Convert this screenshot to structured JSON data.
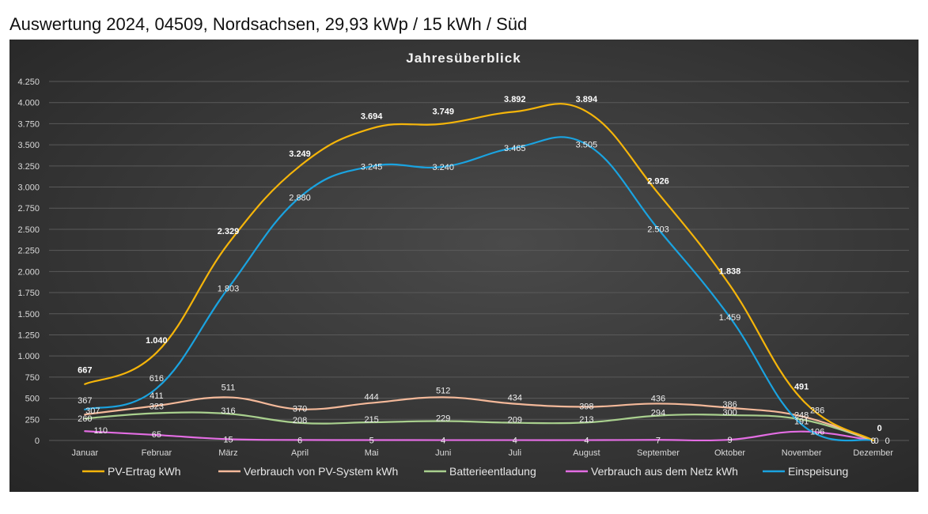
{
  "page": {
    "title": "Auswertung 2024, 04509, Nordsachsen, 29,93 kWp / 15 kWh / Süd"
  },
  "chart_data": {
    "type": "line",
    "title": "Jahresüberblick",
    "categories": [
      "Januar",
      "Februar",
      "März",
      "April",
      "Mai",
      "Juni",
      "Juli",
      "August",
      "September",
      "Oktober",
      "November",
      "Dezember"
    ],
    "ylim": [
      0,
      4250
    ],
    "yticks": [
      0,
      250,
      500,
      750,
      1000,
      1250,
      1500,
      1750,
      2000,
      2250,
      2500,
      2750,
      3000,
      3250,
      3500,
      3750,
      4000,
      4250
    ],
    "ytick_labels": [
      "0",
      "250",
      "500",
      "750",
      "1.000",
      "1.250",
      "1.500",
      "1.750",
      "2.000",
      "2.250",
      "2.500",
      "2.750",
      "3.000",
      "3.250",
      "3.500",
      "3.750",
      "4.000",
      "4.250"
    ],
    "grid": true,
    "legend_position": "bottom",
    "series": [
      {
        "name": "PV-Ertrag     kWh",
        "color": "#f5b50a",
        "bold": true,
        "values": [
          667,
          1040,
          2329,
          3249,
          3694,
          3749,
          3892,
          3894,
          2926,
          1838,
          491,
          0
        ],
        "labels": [
          "667",
          "1.040",
          "2.329",
          "3.249",
          "3.694",
          "3.749",
          "3.892",
          "3.894",
          "2.926",
          "1.838",
          "491",
          "0"
        ]
      },
      {
        "name": "Verbrauch von PV-System kWh",
        "color": "#f4b99a",
        "bold": false,
        "values": [
          307,
          411,
          511,
          370,
          444,
          512,
          434,
          398,
          436,
          386,
          286,
          0
        ],
        "labels": [
          "307",
          "411",
          "511",
          "370",
          "444",
          "512",
          "434",
          "398",
          "436",
          "386",
          "286",
          "0"
        ]
      },
      {
        "name": "Batterieentladung",
        "color": "#a9d08e",
        "bold": false,
        "values": [
          260,
          323,
          316,
          208,
          215,
          229,
          209,
          213,
          294,
          300,
          248,
          0
        ],
        "labels": [
          "260",
          "323",
          "316",
          "208",
          "215",
          "229",
          "209",
          "213",
          "294",
          "300",
          "248",
          "0"
        ]
      },
      {
        "name": "Verbrauch aus dem Netz kWh",
        "color": "#e36de3",
        "bold": false,
        "values": [
          110,
          65,
          15,
          6,
          5,
          4,
          4,
          4,
          7,
          9,
          106,
          0
        ],
        "labels": [
          "110",
          "65",
          "15",
          "6",
          "5",
          "4",
          "4",
          "4",
          "7",
          "9",
          "106",
          "0"
        ]
      },
      {
        "name": "Einspeisung",
        "color": "#1aa3e0",
        "bold": false,
        "values": [
          367,
          616,
          1803,
          2880,
          3245,
          3240,
          3465,
          3505,
          2503,
          1459,
          191,
          0
        ],
        "labels": [
          "367",
          "616",
          "1.803",
          "2.880",
          "3.245",
          "3.240",
          "3.465",
          "3.505",
          "2.503",
          "1.459",
          "191",
          "0"
        ]
      }
    ]
  }
}
